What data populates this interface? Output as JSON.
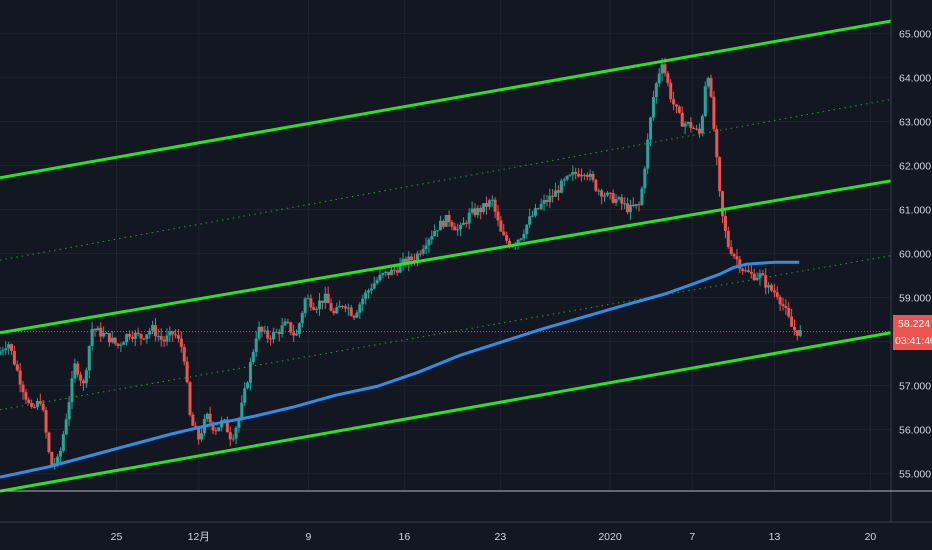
{
  "chart_data": {
    "type": "candlestick",
    "theme": {
      "background": "#131722",
      "grid": "#1e2230",
      "text": "#d1d4dc",
      "up": "#26a69a",
      "down": "#ef5350",
      "channel": "#26e61e",
      "ma": "#2f8fe6",
      "price_label_bg": "#ef5350"
    },
    "ylim": [
      54.4,
      65.35
    ],
    "y_ticks": [
      "55.000",
      "56.000",
      "57.000",
      "58.000",
      "59.000",
      "60.000",
      "61.000",
      "62.000",
      "63.000",
      "64.000",
      "65.000"
    ],
    "x_ticks": [
      {
        "label": "25",
        "day": 25
      },
      {
        "label": "12月",
        "day": 31
      },
      {
        "label": "9",
        "day": 39
      },
      {
        "label": "16",
        "day": 46
      },
      {
        "label": "23",
        "day": 53
      },
      {
        "label": "2020",
        "day": 61
      },
      {
        "label": "7",
        "day": 67
      },
      {
        "label": "13",
        "day": 73
      },
      {
        "label": "20",
        "day": 80
      }
    ],
    "x_range": [
      16.5,
      81.5
    ],
    "last_price": "58.224",
    "countdown": "03:41:40",
    "channel_lines": [
      {
        "name": "upper-channel-line",
        "style": "solid",
        "y_start": 61.72,
        "y_end": 65.28
      },
      {
        "name": "upper-mid-line",
        "style": "dotted",
        "y_start": 59.85,
        "y_end": 63.5
      },
      {
        "name": "middle-channel-line",
        "style": "solid",
        "y_start": 58.2,
        "y_end": 61.65
      },
      {
        "name": "lower-mid-line",
        "style": "dotted",
        "y_start": 56.45,
        "y_end": 59.95
      },
      {
        "name": "lower-channel-line",
        "style": "solid",
        "y_start": 54.6,
        "y_end": 58.2
      }
    ],
    "anchors": [
      [
        16.5,
        57.7
      ],
      [
        17.3,
        58.0
      ],
      [
        18.2,
        57.1
      ],
      [
        19.0,
        56.4
      ],
      [
        19.7,
        56.7
      ],
      [
        20.4,
        55.2
      ],
      [
        21.0,
        55.3
      ],
      [
        21.6,
        56.4
      ],
      [
        22.2,
        57.5
      ],
      [
        22.8,
        57.0
      ],
      [
        23.4,
        58.3
      ],
      [
        24.0,
        58.2
      ],
      [
        24.6,
        58.1
      ],
      [
        25.3,
        57.9
      ],
      [
        26.1,
        58.2
      ],
      [
        27.0,
        58.1
      ],
      [
        27.8,
        58.3
      ],
      [
        28.6,
        58.0
      ],
      [
        29.4,
        58.2
      ],
      [
        30.1,
        57.8
      ],
      [
        30.6,
        56.2
      ],
      [
        31.2,
        55.8
      ],
      [
        31.8,
        56.3
      ],
      [
        32.4,
        56.0
      ],
      [
        33.0,
        56.2
      ],
      [
        33.6,
        55.8
      ],
      [
        34.2,
        56.3
      ],
      [
        34.8,
        57.2
      ],
      [
        35.5,
        58.3
      ],
      [
        36.2,
        58.1
      ],
      [
        36.9,
        58.2
      ],
      [
        37.6,
        58.4
      ],
      [
        38.3,
        58.1
      ],
      [
        39.0,
        59.0
      ],
      [
        39.7,
        58.8
      ],
      [
        40.4,
        59.0
      ],
      [
        41.1,
        58.6
      ],
      [
        41.8,
        58.9
      ],
      [
        42.5,
        58.6
      ],
      [
        43.2,
        59.0
      ],
      [
        43.9,
        59.3
      ],
      [
        44.6,
        59.5
      ],
      [
        45.4,
        59.6
      ],
      [
        46.2,
        59.8
      ],
      [
        47.0,
        59.9
      ],
      [
        47.8,
        60.3
      ],
      [
        48.6,
        60.6
      ],
      [
        49.4,
        60.8
      ],
      [
        50.2,
        60.5
      ],
      [
        51.0,
        60.9
      ],
      [
        51.8,
        61.0
      ],
      [
        52.6,
        61.2
      ],
      [
        53.3,
        60.4
      ],
      [
        54.0,
        60.2
      ],
      [
        54.7,
        60.4
      ],
      [
        55.4,
        60.8
      ],
      [
        56.2,
        61.1
      ],
      [
        57.0,
        61.3
      ],
      [
        57.8,
        61.6
      ],
      [
        58.6,
        61.8
      ],
      [
        59.4,
        61.9
      ],
      [
        60.2,
        61.5
      ],
      [
        61.0,
        61.3
      ],
      [
        61.8,
        61.2
      ],
      [
        62.6,
        61.0
      ],
      [
        63.4,
        61.1
      ],
      [
        63.9,
        62.4
      ],
      [
        64.4,
        63.6
      ],
      [
        65.0,
        64.4
      ],
      [
        65.7,
        63.5
      ],
      [
        66.4,
        63.0
      ],
      [
        67.1,
        62.9
      ],
      [
        67.8,
        62.7
      ],
      [
        68.3,
        64.3
      ],
      [
        68.8,
        62.8
      ],
      [
        69.3,
        61.0
      ],
      [
        69.8,
        60.2
      ],
      [
        70.4,
        59.9
      ],
      [
        71.0,
        59.6
      ],
      [
        71.6,
        59.5
      ],
      [
        72.2,
        59.5
      ],
      [
        72.8,
        59.2
      ],
      [
        73.4,
        59.1
      ],
      [
        74.0,
        58.7
      ],
      [
        74.5,
        58.3
      ],
      [
        75.0,
        58.2
      ]
    ],
    "ma": [
      [
        16.5,
        54.92
      ],
      [
        20,
        55.15
      ],
      [
        23,
        55.4
      ],
      [
        26,
        55.65
      ],
      [
        29,
        55.9
      ],
      [
        32,
        56.12
      ],
      [
        35,
        56.3
      ],
      [
        38,
        56.52
      ],
      [
        41,
        56.78
      ],
      [
        44,
        56.98
      ],
      [
        47,
        57.3
      ],
      [
        50,
        57.68
      ],
      [
        53,
        57.98
      ],
      [
        56,
        58.28
      ],
      [
        59,
        58.55
      ],
      [
        62,
        58.82
      ],
      [
        65,
        59.08
      ],
      [
        67,
        59.3
      ],
      [
        69,
        59.53
      ],
      [
        70,
        59.68
      ],
      [
        71,
        59.76
      ],
      [
        73,
        59.8
      ],
      [
        74.8,
        59.8
      ]
    ]
  }
}
